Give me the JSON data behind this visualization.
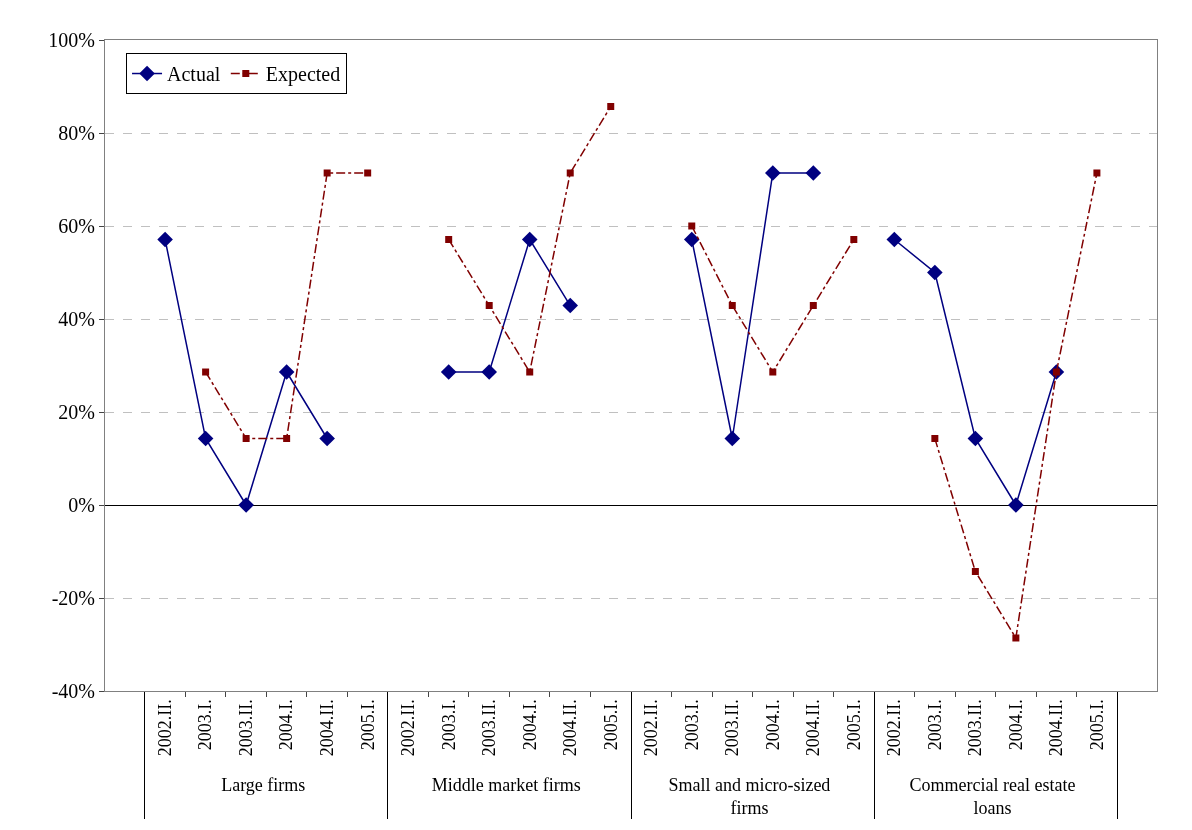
{
  "chart_data": {
    "type": "line",
    "categories": [
      "2002.II.",
      "2003.I.",
      "2003.II.",
      "2004.I.",
      "2004.II.",
      "2005.I.",
      "2002.II.",
      "2003.I.",
      "2003.II.",
      "2004.I.",
      "2004.II.",
      "2005.I.",
      "2002.II.",
      "2003.I.",
      "2003.II.",
      "2004.I.",
      "2004.II.",
      "2005.I.",
      "2002.II.",
      "2003.I.",
      "2003.II.",
      "2004.I.",
      "2004.II.",
      "2005.I."
    ],
    "annotations": [
      "Large firms",
      "Middle market firms",
      "Small and micro-sized firms",
      "Commercial real estate loans"
    ],
    "series": [
      {
        "name": "Actual",
        "color": "#000080",
        "marker": "diamond",
        "line_style": "solid",
        "values": [
          57.1,
          14.3,
          0,
          28.6,
          14.3,
          null,
          null,
          28.6,
          28.6,
          57.1,
          42.9,
          null,
          null,
          57.1,
          14.3,
          71.4,
          71.4,
          null,
          57.1,
          50,
          14.3,
          0,
          28.6,
          null
        ]
      },
      {
        "name": "Expected",
        "color": "#800000",
        "marker": "square",
        "line_style": "dashed",
        "values": [
          null,
          28.6,
          14.3,
          14.3,
          71.4,
          71.4,
          null,
          57.1,
          42.9,
          28.6,
          71.4,
          85.7,
          null,
          60,
          42.9,
          28.6,
          42.9,
          57.1,
          null,
          14.3,
          -14.3,
          -28.6,
          28.6,
          71.4
        ]
      }
    ],
    "ylim": [
      -40,
      100
    ],
    "yticks": [
      {
        "value": -40,
        "label": "-40%"
      },
      {
        "value": -20,
        "label": "-20%"
      },
      {
        "value": 0,
        "label": "0%"
      },
      {
        "value": 20,
        "label": "20%"
      },
      {
        "value": 40,
        "label": "40%"
      },
      {
        "value": 60,
        "label": "60%"
      },
      {
        "value": 80,
        "label": "80%"
      },
      {
        "value": 100,
        "label": "100%"
      }
    ],
    "grid": "y",
    "legend": "top left"
  }
}
